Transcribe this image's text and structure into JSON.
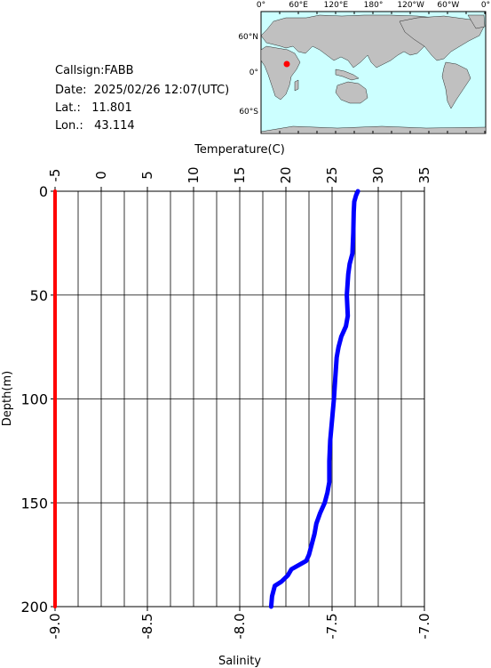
{
  "station": {
    "callsign_label": "Callsign:",
    "callsign": "FABB",
    "date_label": "Date:",
    "date": "2025/02/26 12:07(UTC)",
    "lat_label": "Lat.:",
    "lat": "11.801",
    "lon_label": "Lon.:",
    "lon": "43.114"
  },
  "map": {
    "top_ticks": [
      "0°",
      "60°E",
      "120°E",
      "180°",
      "120°W",
      "60°W",
      "0°"
    ],
    "lat_ticks": [
      "60°N",
      "0°",
      "60°S"
    ],
    "land_color": "#c0c0c0",
    "ocean_color": "#ccffff",
    "marker_color": "#ff0000"
  },
  "chart_data": {
    "type": "line",
    "top_axis_label": "Temperature(C)",
    "bottom_axis_label": "Salinity",
    "y_axis_label": "Depth(m)",
    "temperature_range": [
      -5,
      35
    ],
    "temperature_ticks": [
      "-5",
      "0",
      "5",
      "10",
      "15",
      "20",
      "25",
      "30",
      "35"
    ],
    "salinity_range": [
      -9.0,
      -7.0
    ],
    "salinity_ticks": [
      "-9.0",
      "-8.5",
      "-8.0",
      "-7.5",
      "-7.0"
    ],
    "depth_range": [
      0,
      200
    ],
    "depth_ticks": [
      "0",
      "50",
      "100",
      "150",
      "200"
    ],
    "grid": true,
    "series": [
      {
        "axis": "temperature",
        "color": "#0000ff",
        "depth": [
          0,
          2,
          5,
          10,
          20,
          30,
          35,
          40,
          50,
          60,
          65,
          70,
          75,
          80,
          90,
          100,
          110,
          120,
          130,
          140,
          145,
          150,
          155,
          160,
          165,
          170,
          175,
          178,
          182,
          185,
          188,
          190,
          195,
          200
        ],
        "values": [
          27.8,
          27.6,
          27.4,
          27.35,
          27.3,
          27.2,
          26.9,
          26.75,
          26.6,
          26.7,
          26.5,
          26.0,
          25.7,
          25.5,
          25.35,
          25.2,
          25.0,
          24.8,
          24.7,
          24.7,
          24.5,
          24.2,
          23.7,
          23.3,
          23.1,
          22.8,
          22.5,
          22.2,
          20.6,
          20.2,
          19.5,
          18.8,
          18.5,
          18.4
        ]
      },
      {
        "axis": "salinity",
        "color": "#ff0000",
        "depth": [
          0,
          200
        ],
        "values": [
          -9.0,
          -9.0
        ]
      }
    ]
  }
}
